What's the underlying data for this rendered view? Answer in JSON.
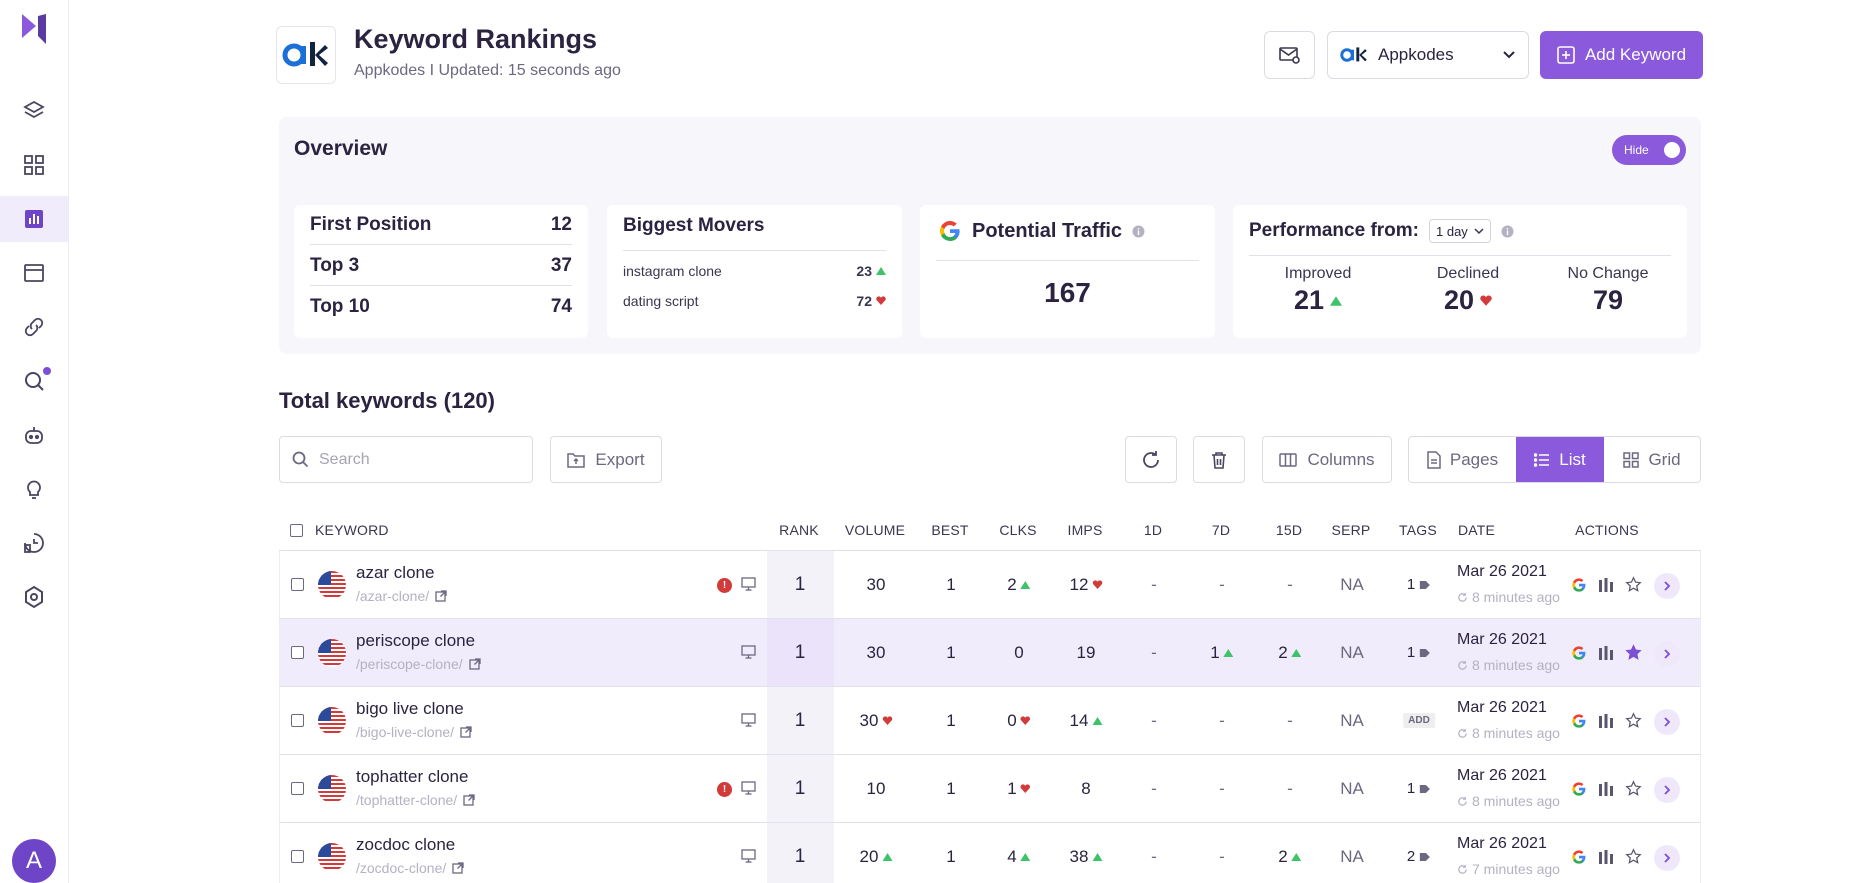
{
  "header": {
    "title": "Keyword Rankings",
    "subtitle": "Appkodes I Updated: 15 seconds ago",
    "project_name": "Appkodes",
    "add_button": "Add Keyword"
  },
  "sidebar": {
    "avatar_letter": "A",
    "items": [
      "layers-icon",
      "dashboard-icon",
      "rankings-icon",
      "browser-icon",
      "link-icon",
      "search-icon",
      "bot-icon",
      "bulb-icon",
      "report-icon",
      "settings-icon"
    ]
  },
  "overview": {
    "title": "Overview",
    "toggle_label": "Hide",
    "positions": [
      {
        "label": "First Position",
        "value": "12"
      },
      {
        "label": "Top 3",
        "value": "37"
      },
      {
        "label": "Top 10",
        "value": "74"
      }
    ],
    "movers": {
      "title": "Biggest Movers",
      "items": [
        {
          "keyword": "instagram clone",
          "value": "23",
          "trend": "up"
        },
        {
          "keyword": "dating script",
          "value": "72",
          "trend": "down"
        }
      ]
    },
    "traffic": {
      "title": "Potential Traffic",
      "value": "167"
    },
    "performance": {
      "title": "Performance from:",
      "period": "1 day",
      "improved_label": "Improved",
      "improved": "21",
      "declined_label": "Declined",
      "declined": "20",
      "nochange_label": "No Change",
      "nochange": "79"
    }
  },
  "toolbar": {
    "total": "Total keywords (120)",
    "search_placeholder": "Search",
    "export": "Export",
    "columns": "Columns",
    "pages": "Pages",
    "list": "List",
    "grid": "Grid"
  },
  "table": {
    "headers": {
      "keyword": "KEYWORD",
      "rank": "RANK",
      "volume": "VOLUME",
      "best": "BEST",
      "clks": "CLKS",
      "imps": "IMPS",
      "d1": "1D",
      "d7": "7D",
      "d15": "15D",
      "serp": "SERP",
      "tags": "TAGS",
      "date": "DATE",
      "actions": "ACTIONS"
    },
    "rows": [
      {
        "keyword": "azar clone",
        "slug": "/azar-clone/",
        "rank": "1",
        "volume": "30",
        "volume_trend": "",
        "best": "1",
        "clks": "2",
        "clks_trend": "up",
        "imps": "12",
        "imps_trend": "down",
        "d1": "-",
        "d1_trend": "",
        "d7": "-",
        "d7_trend": "",
        "d15": "-",
        "d15_trend": "",
        "serp": "NA",
        "tags": "1",
        "date": "Mar 26 2021",
        "updated": "8 minutes ago",
        "info": true,
        "starred": false,
        "highlight": false
      },
      {
        "keyword": "periscope clone",
        "slug": "/periscope-clone/",
        "rank": "1",
        "volume": "30",
        "volume_trend": "",
        "best": "1",
        "clks": "0",
        "clks_trend": "",
        "imps": "19",
        "imps_trend": "",
        "d1": "-",
        "d1_trend": "",
        "d7": "1",
        "d7_trend": "up",
        "d15": "2",
        "d15_trend": "up",
        "serp": "NA",
        "tags": "1",
        "date": "Mar 26 2021",
        "updated": "8 minutes ago",
        "info": false,
        "starred": true,
        "highlight": true
      },
      {
        "keyword": "bigo live clone",
        "slug": "/bigo-live-clone/",
        "rank": "1",
        "volume": "30",
        "volume_trend": "down",
        "best": "1",
        "clks": "0",
        "clks_trend": "down",
        "imps": "14",
        "imps_trend": "up",
        "d1": "-",
        "d1_trend": "",
        "d7": "-",
        "d7_trend": "",
        "d15": "-",
        "d15_trend": "",
        "serp": "NA",
        "tags": "ADD",
        "date": "Mar 26 2021",
        "updated": "8 minutes ago",
        "info": false,
        "starred": false,
        "highlight": false
      },
      {
        "keyword": "tophatter clone",
        "slug": "/tophatter-clone/",
        "rank": "1",
        "volume": "10",
        "volume_trend": "",
        "best": "1",
        "clks": "1",
        "clks_trend": "down",
        "imps": "8",
        "imps_trend": "",
        "d1": "-",
        "d1_trend": "",
        "d7": "-",
        "d7_trend": "",
        "d15": "-",
        "d15_trend": "",
        "serp": "NA",
        "tags": "1",
        "date": "Mar 26 2021",
        "updated": "8 minutes ago",
        "info": true,
        "starred": false,
        "highlight": false
      },
      {
        "keyword": "zocdoc clone",
        "slug": "/zocdoc-clone/",
        "rank": "1",
        "volume": "20",
        "volume_trend": "up",
        "best": "1",
        "clks": "4",
        "clks_trend": "up",
        "imps": "38",
        "imps_trend": "up",
        "d1": "-",
        "d1_trend": "",
        "d7": "-",
        "d7_trend": "",
        "d15": "2",
        "d15_trend": "up",
        "serp": "NA",
        "tags": "2",
        "date": "Mar 26 2021",
        "updated": "7 minutes ago",
        "info": false,
        "starred": false,
        "highlight": false
      }
    ]
  },
  "colors": {
    "accent": "#8a59dc",
    "up": "#3ec26a",
    "down": "#d33b3b"
  }
}
